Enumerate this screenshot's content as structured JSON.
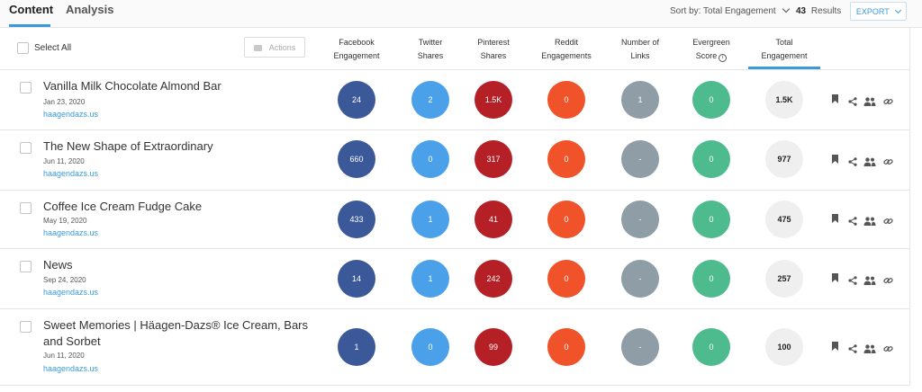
{
  "tabs": {
    "content": "Content",
    "analysis": "Analysis"
  },
  "toolbar": {
    "sort_label": "Sort by: Total Engagement",
    "results_count": "43",
    "results_label": "Results",
    "export_label": "EXPORT"
  },
  "header": {
    "select_all": "Select All",
    "actions": "Actions",
    "columns": {
      "facebook": [
        "Facebook",
        "Engagement"
      ],
      "twitter": [
        "Twitter",
        "Shares"
      ],
      "pinterest": [
        "Pinterest",
        "Shares"
      ],
      "reddit": [
        "Reddit",
        "Engagements"
      ],
      "links": [
        "Number of",
        "Links"
      ],
      "evergreen": [
        "Evergreen",
        "Score"
      ],
      "total": [
        "Total",
        "Engagement"
      ]
    }
  },
  "rows": [
    {
      "title": "Vanilla Milk Chocolate Almond Bar",
      "date": "Jan 23, 2020",
      "domain": "haagendazs.us",
      "facebook": "24",
      "twitter": "2",
      "pinterest": "1.5K",
      "reddit": "0",
      "links": "1",
      "evergreen": "0",
      "total": "1.5K"
    },
    {
      "title": "The New Shape of Extraordinary",
      "date": "Jun 11, 2020",
      "domain": "haagendazs.us",
      "facebook": "660",
      "twitter": "0",
      "pinterest": "317",
      "reddit": "0",
      "links": "-",
      "evergreen": "0",
      "total": "977"
    },
    {
      "title": "Coffee Ice Cream Fudge Cake",
      "date": "May 19, 2020",
      "domain": "haagendazs.us",
      "facebook": "433",
      "twitter": "1",
      "pinterest": "41",
      "reddit": "0",
      "links": "-",
      "evergreen": "0",
      "total": "475"
    },
    {
      "title": "News",
      "date": "Sep 24, 2020",
      "domain": "haagendazs.us",
      "facebook": "14",
      "twitter": "1",
      "pinterest": "242",
      "reddit": "0",
      "links": "-",
      "evergreen": "0",
      "total": "257"
    },
    {
      "title": "Sweet Memories | Häagen-Dazs® Ice Cream, Bars and Sorbet",
      "date": "Jun 11, 2020",
      "domain": "haagendazs.us",
      "facebook": "1",
      "twitter": "0",
      "pinterest": "99",
      "reddit": "0",
      "links": "-",
      "evergreen": "0",
      "total": "100"
    }
  ],
  "row_icons": [
    "bookmark-icon",
    "share-icon",
    "group-icon",
    "link-icon"
  ],
  "colors": {
    "facebook": "#3b5998",
    "twitter": "#4aa1ea",
    "pinterest": "#b42025",
    "reddit": "#f0522a",
    "links": "#8e9da6",
    "evergreen": "#4dbb8e",
    "total": "#efefef",
    "accent": "#3a9ad9"
  }
}
